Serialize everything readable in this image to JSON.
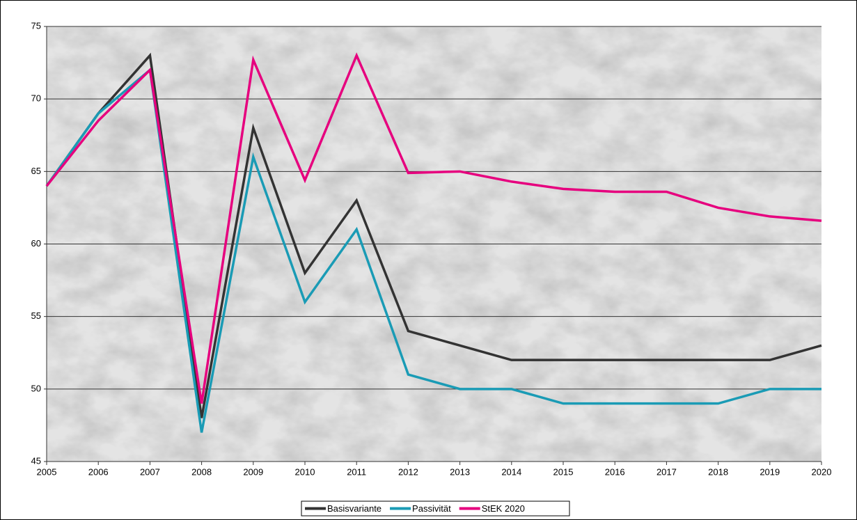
{
  "chart_data": {
    "type": "line",
    "x": [
      2005,
      2006,
      2007,
      2008,
      2009,
      2010,
      2011,
      2012,
      2013,
      2014,
      2015,
      2016,
      2017,
      2018,
      2019,
      2020
    ],
    "xlim": [
      2005,
      2020
    ],
    "ylim": [
      45,
      75
    ],
    "yticks": [
      45,
      50,
      55,
      60,
      65,
      70,
      75
    ],
    "grid": true,
    "legend": "bottom",
    "series": [
      {
        "name": "Basisvariante",
        "color": "#333333",
        "values": [
          64,
          69,
          73,
          48,
          68,
          58,
          63,
          54,
          53,
          52,
          52,
          52,
          52,
          52,
          52,
          53
        ]
      },
      {
        "name": "Passivität",
        "color": "#1a9bb5",
        "values": [
          64,
          69,
          72,
          47,
          66,
          56,
          61,
          51,
          50,
          50,
          49,
          49,
          49,
          49,
          50,
          50
        ]
      },
      {
        "name": "StEK 2020",
        "color": "#e6007e",
        "values": [
          64,
          68.5,
          72,
          49,
          72.7,
          64.4,
          73,
          64.9,
          65,
          64.3,
          63.8,
          63.6,
          63.6,
          62.5,
          61.9,
          61.6
        ]
      }
    ]
  }
}
